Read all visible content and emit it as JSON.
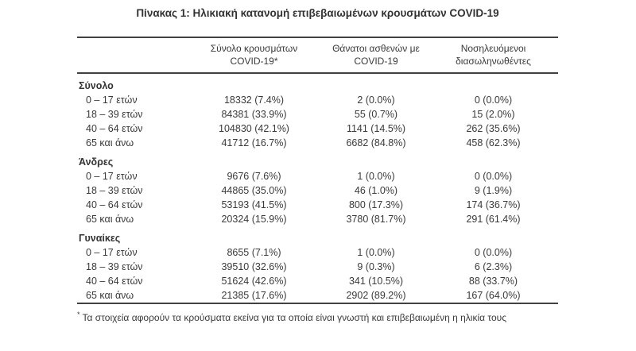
{
  "title": "Πίνακας 1: Ηλικιακή κατανομή επιβεβαιωμένων κρουσμάτων COVID-19",
  "columns": {
    "cases_line1": "Σύνολο κρουσμάτων",
    "cases_line2": "COVID-19*",
    "deaths_line1": "Θάνατοι ασθενών με",
    "deaths_line2": "COVID-19",
    "intubated_line1": "Νοσηλευόμενοι",
    "intubated_line2": "διασωληνωθέντες"
  },
  "sections": [
    {
      "label": "Σύνολο",
      "rows": [
        {
          "age": "0 – 17 ετών",
          "cases": "18332 (7.4%)",
          "deaths": "2 (0.0%)",
          "intubated": "0 (0.0%)"
        },
        {
          "age": "18 – 39 ετών",
          "cases": "84381 (33.9%)",
          "deaths": "55 (0.7%)",
          "intubated": "15 (2.0%)"
        },
        {
          "age": "40 – 64 ετών",
          "cases": "104830 (42.1%)",
          "deaths": "1141 (14.5%)",
          "intubated": "262 (35.6%)"
        },
        {
          "age": "65 και άνω",
          "cases": "41712 (16.7%)",
          "deaths": "6682 (84.8%)",
          "intubated": "458 (62.3%)"
        }
      ]
    },
    {
      "label": "Άνδρες",
      "rows": [
        {
          "age": "0 – 17 ετών",
          "cases": "9676 (7.6%)",
          "deaths": "1 (0.0%)",
          "intubated": "0 (0.0%)"
        },
        {
          "age": "18 – 39 ετών",
          "cases": "44865 (35.0%)",
          "deaths": "46 (1.0%)",
          "intubated": "9 (1.9%)"
        },
        {
          "age": "40 – 64 ετών",
          "cases": "53193 (41.5%)",
          "deaths": "800 (17.3%)",
          "intubated": "174 (36.7%)"
        },
        {
          "age": "65 και άνω",
          "cases": "20324 (15.9%)",
          "deaths": "3780 (81.7%)",
          "intubated": "291 (61.4%)"
        }
      ]
    },
    {
      "label": "Γυναίκες",
      "rows": [
        {
          "age": "0 – 17 ετών",
          "cases": "8655 (7.1%)",
          "deaths": "1 (0.0%)",
          "intubated": "0 (0.0%)"
        },
        {
          "age": "18 – 39 ετών",
          "cases": "39510 (32.6%)",
          "deaths": "9 (0.3%)",
          "intubated": "6 (2.3%)"
        },
        {
          "age": "40 – 64 ετών",
          "cases": "51624 (42.6%)",
          "deaths": "341 (10.5%)",
          "intubated": "88 (33.7%)"
        },
        {
          "age": "65 και άνω",
          "cases": "21385 (17.6%)",
          "deaths": "2902 (89.2%)",
          "intubated": "167 (64.0%)"
        }
      ]
    }
  ],
  "footnote": {
    "marker": "*",
    "text": "Τα στοιχεία αφορούν τα κρούσματα εκείνα για τα οποία είναι γνωστή και επιβεβαιωμένη η ηλικία τους"
  },
  "colors": {
    "text": "#3a3a3a",
    "rule": "#414141",
    "background": "#ffffff"
  }
}
